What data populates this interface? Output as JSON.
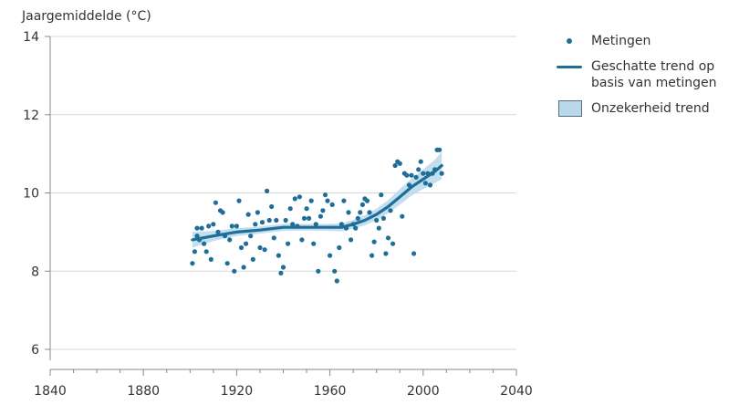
{
  "chart_data": {
    "type": "scatter",
    "ylabel": "Jaargemiddelde (°C)",
    "xlabel": "",
    "xlim": [
      1840,
      2040
    ],
    "ylim": [
      6,
      14
    ],
    "xticks": [
      1840,
      1880,
      1920,
      1960,
      2000,
      2040
    ],
    "yticks": [
      6,
      8,
      10,
      12,
      14
    ],
    "grid": true,
    "legend_position": "right",
    "colors": {
      "points": "#1f6d99",
      "trend": "#1f6d99",
      "band": "#b9d8ea",
      "grid": "#d9d9d9",
      "axis": "#888888"
    },
    "series": [
      {
        "name": "Metingen",
        "kind": "points",
        "points": [
          [
            1901,
            8.2
          ],
          [
            1902,
            8.5
          ],
          [
            1903,
            8.9
          ],
          [
            1903,
            9.1
          ],
          [
            1904,
            8.8
          ],
          [
            1905,
            9.1
          ],
          [
            1906,
            8.7
          ],
          [
            1907,
            8.5
          ],
          [
            1908,
            9.15
          ],
          [
            1909,
            8.3
          ],
          [
            1910,
            9.2
          ],
          [
            1911,
            9.75
          ],
          [
            1912,
            9.0
          ],
          [
            1913,
            9.55
          ],
          [
            1914,
            9.5
          ],
          [
            1915,
            8.9
          ],
          [
            1916,
            8.2
          ],
          [
            1917,
            8.8
          ],
          [
            1918,
            9.15
          ],
          [
            1919,
            8.0
          ],
          [
            1920,
            9.15
          ],
          [
            1921,
            9.8
          ],
          [
            1922,
            8.6
          ],
          [
            1923,
            8.1
          ],
          [
            1924,
            8.7
          ],
          [
            1925,
            9.45
          ],
          [
            1926,
            8.9
          ],
          [
            1927,
            8.3
          ],
          [
            1928,
            9.2
          ],
          [
            1929,
            9.5
          ],
          [
            1930,
            8.6
          ],
          [
            1931,
            9.25
          ],
          [
            1932,
            8.55
          ],
          [
            1933,
            10.05
          ],
          [
            1934,
            9.3
          ],
          [
            1935,
            9.65
          ],
          [
            1936,
            8.85
          ],
          [
            1937,
            9.3
          ],
          [
            1938,
            8.4
          ],
          [
            1939,
            7.95
          ],
          [
            1940,
            8.1
          ],
          [
            1941,
            9.3
          ],
          [
            1942,
            8.7
          ],
          [
            1943,
            9.6
          ],
          [
            1944,
            9.2
          ],
          [
            1945,
            9.85
          ],
          [
            1946,
            9.15
          ],
          [
            1947,
            9.9
          ],
          [
            1948,
            8.8
          ],
          [
            1949,
            9.35
          ],
          [
            1950,
            9.6
          ],
          [
            1951,
            9.35
          ],
          [
            1952,
            9.8
          ],
          [
            1953,
            8.7
          ],
          [
            1954,
            9.2
          ],
          [
            1955,
            8.0
          ],
          [
            1956,
            9.4
          ],
          [
            1957,
            9.55
          ],
          [
            1958,
            9.95
          ],
          [
            1959,
            9.8
          ],
          [
            1960,
            8.4
          ],
          [
            1961,
            9.7
          ],
          [
            1962,
            8.0
          ],
          [
            1963,
            7.75
          ],
          [
            1964,
            8.6
          ],
          [
            1965,
            9.2
          ],
          [
            1966,
            9.8
          ],
          [
            1967,
            9.1
          ],
          [
            1968,
            9.5
          ],
          [
            1969,
            8.8
          ],
          [
            1970,
            9.2
          ],
          [
            1971,
            9.1
          ],
          [
            1972,
            9.35
          ],
          [
            1973,
            9.5
          ],
          [
            1974,
            9.7
          ],
          [
            1975,
            9.85
          ],
          [
            1976,
            9.8
          ],
          [
            1977,
            9.5
          ],
          [
            1978,
            8.4
          ],
          [
            1979,
            8.75
          ],
          [
            1980,
            9.3
          ],
          [
            1981,
            9.1
          ],
          [
            1982,
            9.95
          ],
          [
            1983,
            9.35
          ],
          [
            1984,
            8.45
          ],
          [
            1985,
            8.85
          ],
          [
            1986,
            9.55
          ],
          [
            1987,
            8.7
          ],
          [
            1988,
            10.7
          ],
          [
            1989,
            10.8
          ],
          [
            1990,
            10.75
          ],
          [
            1991,
            9.4
          ],
          [
            1992,
            10.5
          ],
          [
            1993,
            10.45
          ],
          [
            1994,
            10.2
          ],
          [
            1995,
            10.45
          ],
          [
            1996,
            8.45
          ],
          [
            1997,
            10.4
          ],
          [
            1998,
            10.6
          ],
          [
            1999,
            10.8
          ],
          [
            2000,
            10.5
          ],
          [
            2001,
            10.25
          ],
          [
            2002,
            10.5
          ],
          [
            2003,
            10.2
          ],
          [
            2004,
            10.5
          ],
          [
            2005,
            10.6
          ],
          [
            2006,
            11.1
          ],
          [
            2007,
            11.1
          ],
          [
            2008,
            10.5
          ]
        ]
      },
      {
        "name": "Geschatte trend op basis van metingen",
        "kind": "line",
        "x": [
          1901,
          1910,
          1920,
          1930,
          1940,
          1950,
          1960,
          1965,
          1970,
          1975,
          1980,
          1985,
          1990,
          1995,
          2000,
          2005,
          2008
        ],
        "y": [
          8.8,
          8.9,
          9.0,
          9.05,
          9.12,
          9.12,
          9.12,
          9.12,
          9.2,
          9.3,
          9.45,
          9.65,
          9.9,
          10.15,
          10.35,
          10.55,
          10.7
        ]
      },
      {
        "name": "Onzekerheid trend",
        "kind": "band",
        "x": [
          1901,
          1910,
          1920,
          1930,
          1940,
          1950,
          1960,
          1965,
          1970,
          1975,
          1980,
          1985,
          1990,
          1995,
          2000,
          2005,
          2008
        ],
        "lower": [
          8.6,
          8.77,
          8.9,
          8.96,
          9.03,
          9.04,
          9.03,
          9.02,
          9.09,
          9.17,
          9.3,
          9.48,
          9.7,
          9.93,
          10.1,
          10.25,
          10.35
        ],
        "upper": [
          9.0,
          9.03,
          9.1,
          9.14,
          9.21,
          9.2,
          9.21,
          9.22,
          9.31,
          9.43,
          9.6,
          9.82,
          10.1,
          10.37,
          10.6,
          10.85,
          11.05
        ]
      }
    ]
  },
  "legend": {
    "items": [
      {
        "label": "Metingen",
        "type": "point"
      },
      {
        "label": "Geschatte trend op basis van metingen",
        "type": "line"
      },
      {
        "label": "Onzekerheid trend",
        "type": "band"
      }
    ]
  }
}
